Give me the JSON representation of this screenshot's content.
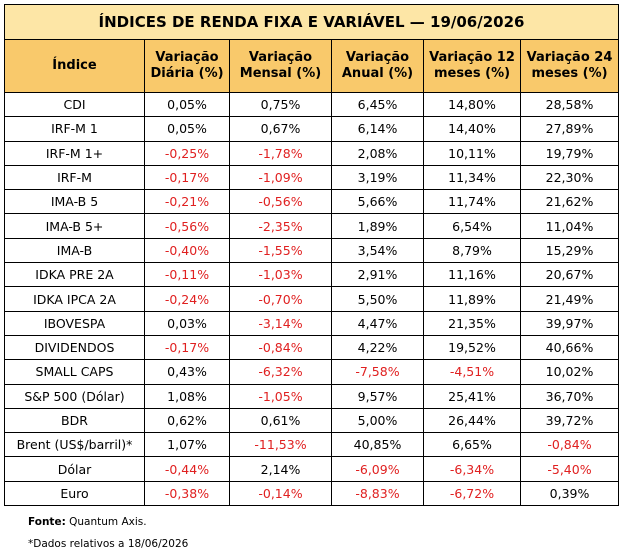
{
  "table": {
    "title": "ÍNDICES DE RENDA FIXA E VARIÁVEL — 19/06/2026",
    "header": [
      "Índice",
      "Variação Diária (%)",
      "Variação Mensal (%)",
      "Variação Anual (%)",
      "Variação 12 meses (%)",
      "Variação 24 meses (%)"
    ],
    "rows": [
      [
        "CDI",
        "0,05%",
        "0,75%",
        "6,45%",
        "14,80%",
        "28,58%"
      ],
      [
        "IRF-M 1",
        "0,05%",
        "0,67%",
        "6,14%",
        "14,40%",
        "27,89%"
      ],
      [
        "IRF-M 1+",
        "-0,25%",
        "-1,78%",
        "2,08%",
        "10,11%",
        "19,79%"
      ],
      [
        "IRF-M",
        "-0,17%",
        "-1,09%",
        "3,19%",
        "11,34%",
        "22,30%"
      ],
      [
        "IMA-B 5",
        "-0,21%",
        "-0,56%",
        "5,66%",
        "11,74%",
        "21,62%"
      ],
      [
        "IMA-B 5+",
        "-0,56%",
        "-2,35%",
        "1,89%",
        "6,54%",
        "11,04%"
      ],
      [
        "IMA-B",
        "-0,40%",
        "-1,55%",
        "3,54%",
        "8,79%",
        "15,29%"
      ],
      [
        "IDKA PRE 2A",
        "-0,11%",
        "-1,03%",
        "2,91%",
        "11,16%",
        "20,67%"
      ],
      [
        "IDKA IPCA 2A",
        "-0,24%",
        "-0,70%",
        "5,50%",
        "11,89%",
        "21,49%"
      ],
      [
        "IBOVESPA",
        "0,03%",
        "-3,14%",
        "4,47%",
        "21,35%",
        "39,97%"
      ],
      [
        "DIVIDENDOS",
        "-0,17%",
        "-0,84%",
        "4,22%",
        "19,52%",
        "40,66%"
      ],
      [
        "SMALL CAPS",
        "0,43%",
        "-6,32%",
        "-7,58%",
        "-4,51%",
        "10,02%"
      ],
      [
        "S&P 500 (Dólar)",
        "1,08%",
        "-1,05%",
        "9,57%",
        "25,41%",
        "36,70%"
      ],
      [
        "BDR",
        "0,62%",
        "0,61%",
        "5,00%",
        "26,44%",
        "39,72%"
      ],
      [
        "Brent (US$/barril)*",
        "1,07%",
        "-11,53%",
        "40,85%",
        "6,65%",
        "-0,84%"
      ],
      [
        "Dólar",
        "-0,44%",
        "2,14%",
        "-6,09%",
        "-6,34%",
        "-5,40%"
      ],
      [
        "Euro",
        "-0,38%",
        "-0,14%",
        "-8,83%",
        "-6,72%",
        "0,39%"
      ]
    ]
  },
  "footer": {
    "source_label": "Fonte:",
    "source": "Quantum Axis.",
    "note": "*Dados relativos a 18/06/2026"
  }
}
